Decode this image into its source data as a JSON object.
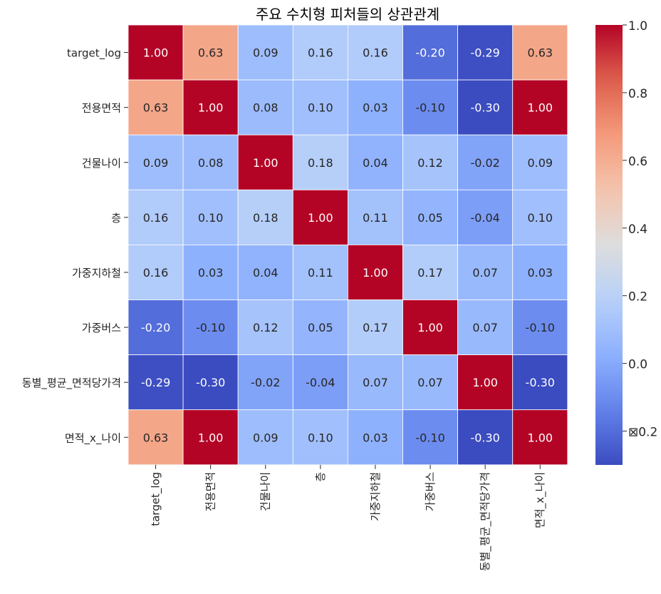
{
  "chart_data": {
    "type": "heatmap",
    "title": "주요 수치형 피처들의 상관관계",
    "rows": [
      "target_log",
      "전용면적",
      "건물나이",
      "층",
      "가중지하철",
      "가중버스",
      "동별_평균_면적당가격",
      "면적_x_나이"
    ],
    "columns": [
      "target_log",
      "전용면적",
      "건물나이",
      "층",
      "가중지하철",
      "가중버스",
      "동별_평균_면적당가격",
      "면적_x_나이"
    ],
    "values": [
      [
        1.0,
        0.63,
        0.09,
        0.16,
        0.16,
        -0.2,
        -0.29,
        0.63
      ],
      [
        0.63,
        1.0,
        0.08,
        0.1,
        0.03,
        -0.1,
        -0.3,
        1.0
      ],
      [
        0.09,
        0.08,
        1.0,
        0.18,
        0.04,
        0.12,
        -0.02,
        0.09
      ],
      [
        0.16,
        0.1,
        0.18,
        1.0,
        0.11,
        0.05,
        -0.04,
        0.1
      ],
      [
        0.16,
        0.03,
        0.04,
        0.11,
        1.0,
        0.17,
        0.07,
        0.03
      ],
      [
        -0.2,
        -0.1,
        0.12,
        0.05,
        0.17,
        1.0,
        0.07,
        -0.1
      ],
      [
        -0.29,
        -0.3,
        -0.02,
        -0.04,
        0.07,
        0.07,
        1.0,
        -0.3
      ],
      [
        0.63,
        1.0,
        0.09,
        0.1,
        0.03,
        -0.1,
        -0.3,
        1.0
      ]
    ],
    "value_format": "fixed-2",
    "colormap": "coolwarm",
    "vmin": -0.3,
    "vmax": 1.0,
    "colorbar": {
      "ticks": [
        1.0,
        0.8,
        0.6,
        0.4,
        0.2,
        0.0,
        -0.2
      ],
      "tick_labels": [
        "1.0",
        "0.8",
        "0.6",
        "0.4",
        "0.2",
        "0.0",
        "⊠0.2"
      ]
    },
    "cell_border_color": "#ffffff",
    "label_color_dark": "#262626",
    "label_color_light": "#ffffff"
  }
}
